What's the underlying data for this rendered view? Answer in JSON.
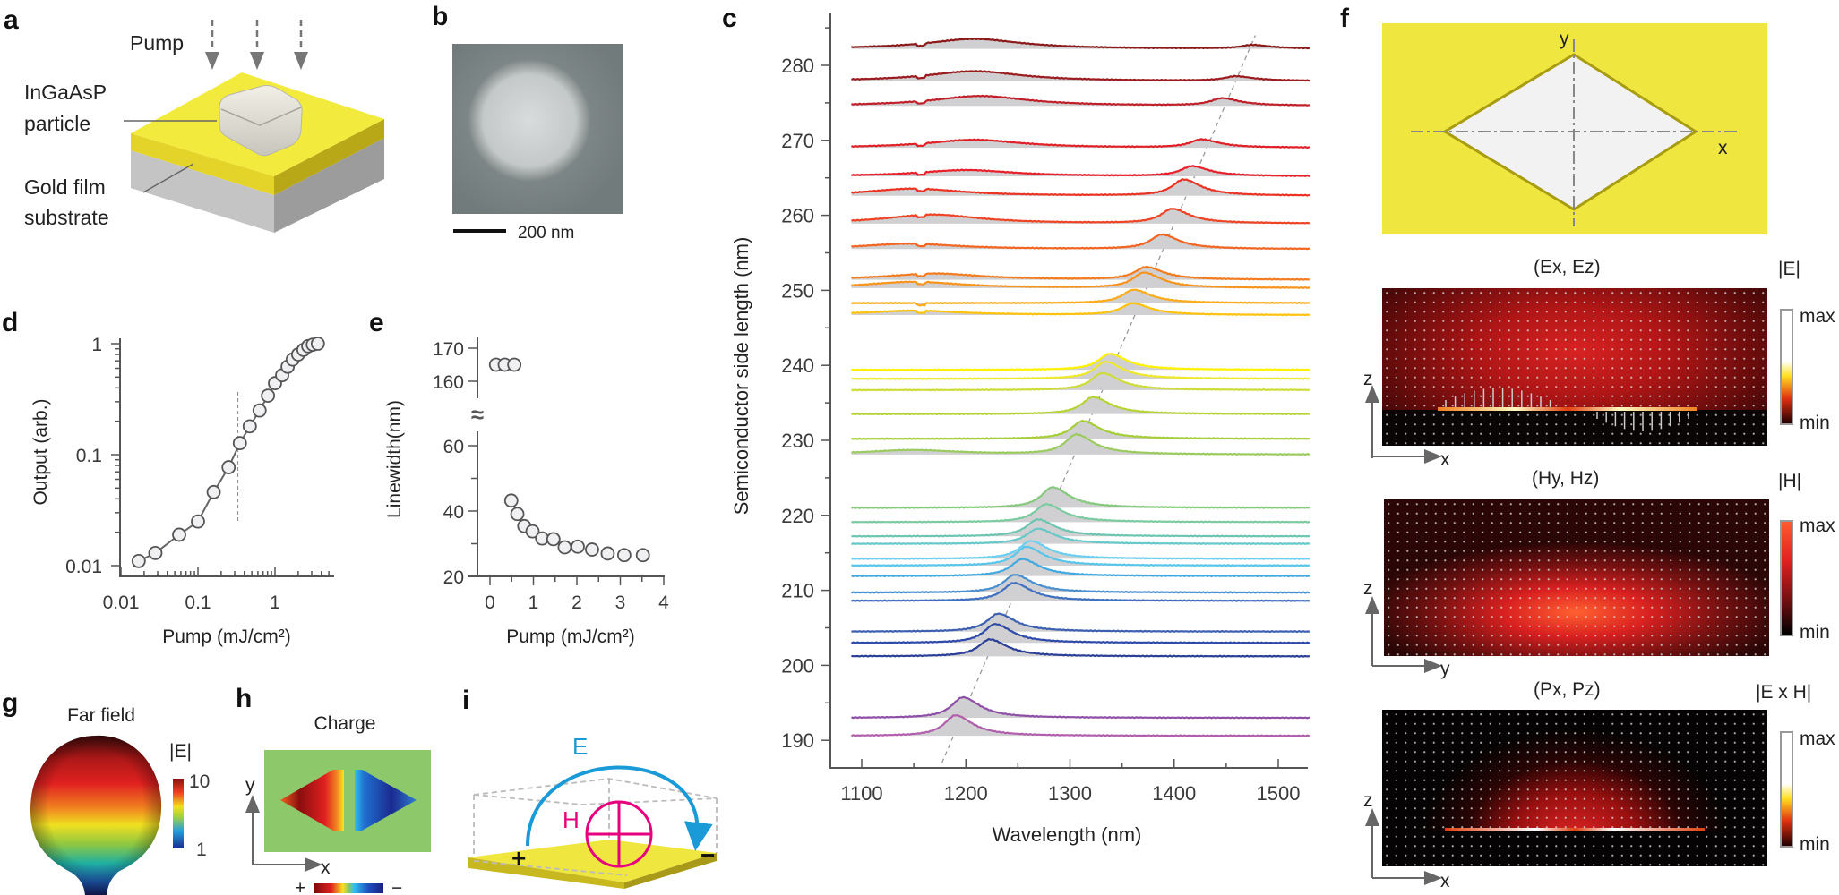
{
  "panel_labels": [
    "a",
    "b",
    "c",
    "d",
    "e",
    "f",
    "g",
    "h",
    "i"
  ],
  "panel_a": {
    "pump": "Pump",
    "particle_line1": "InGaAsP",
    "particle_line2": "particle",
    "substrate_line1": "Gold film",
    "substrate_line2": "substrate"
  },
  "panel_b": {
    "scale_bar": "200 nm"
  },
  "panel_f": {
    "top_axis_x": "x",
    "top_axis_y": "y",
    "maps": [
      {
        "title": "(Ex, Ez)",
        "colorbar_label": "|E|",
        "max": "max",
        "min": "min",
        "axis_v": "z",
        "axis_h": "x"
      },
      {
        "title": "(Hy, Hz)",
        "colorbar_label": "|H|",
        "max": "max",
        "min": "min",
        "axis_v": "z",
        "axis_h": "y"
      },
      {
        "title": "(Px, Pz)",
        "colorbar_label": "|E x H|",
        "max": "max",
        "min": "min",
        "axis_v": "z",
        "axis_h": "x"
      }
    ]
  },
  "panel_g": {
    "title": "Far field",
    "colorbar_label": "|E|",
    "max": "10",
    "min": "1"
  },
  "panel_h": {
    "title": "Charge",
    "axis_v": "y",
    "axis_h": "x",
    "plus": "+",
    "minus": "−"
  },
  "panel_i": {
    "e_label": "E",
    "h_label": "H",
    "plus": "+",
    "minus": "−"
  },
  "colors": {
    "gold": "#f0e640",
    "marker_fill": "#f0f0f2",
    "axis": "#555555",
    "peak_fill": "#d0d0d2",
    "e_arrow": "#1a9ad6",
    "h_loop": "#e6007e"
  },
  "chart_data": [
    {
      "panel": "d",
      "type": "scatter",
      "xlabel": "Pump (mJ/cm²)",
      "ylabel": "Output (arb.)",
      "xscale": "log",
      "yscale": "log",
      "xlim": [
        0.01,
        5
      ],
      "ylim": [
        0.008,
        1.2
      ],
      "xticks": [
        0.01,
        0.1,
        1
      ],
      "xtick_labels": [
        "0.01",
        "0.1",
        "1"
      ],
      "yticks": [
        0.01,
        0.1,
        1
      ],
      "ytick_labels": [
        "0.01",
        "0.1",
        "1"
      ],
      "threshold": 0.33,
      "x": [
        0.017,
        0.028,
        0.057,
        0.1,
        0.16,
        0.25,
        0.35,
        0.47,
        0.63,
        0.81,
        1.0,
        1.24,
        1.46,
        1.7,
        2.0,
        2.35,
        2.7,
        3.1,
        3.6
      ],
      "y": [
        0.011,
        0.013,
        0.019,
        0.025,
        0.046,
        0.077,
        0.127,
        0.18,
        0.25,
        0.34,
        0.44,
        0.52,
        0.62,
        0.72,
        0.8,
        0.88,
        0.95,
        0.98,
        1.0
      ]
    },
    {
      "panel": "e",
      "type": "scatter",
      "xlabel": "Pump (mJ/cm²)",
      "ylabel": "Linewidth(nm)",
      "xlim": [
        -0.2,
        4
      ],
      "ylim_lower": [
        20,
        65
      ],
      "ylim_upper": [
        157,
        172
      ],
      "axis_break": "≈",
      "xticks": [
        0,
        1,
        2,
        3,
        4
      ],
      "xtick_labels": [
        "0",
        "1",
        "2",
        "3",
        "4"
      ],
      "yticks": [
        20,
        40,
        60,
        160,
        170
      ],
      "ytick_labels": [
        "20",
        "40",
        "60",
        "160",
        "170"
      ],
      "x": [
        0.14,
        0.34,
        0.56,
        0.49,
        0.63,
        0.79,
        0.98,
        1.2,
        1.46,
        1.72,
        2.02,
        2.35,
        2.71,
        3.09,
        3.52
      ],
      "y": [
        165,
        165,
        165,
        43.2,
        39.1,
        35.4,
        33.8,
        31.6,
        31.4,
        28.9,
        29.1,
        28.2,
        27.0,
        26.5,
        26.5
      ]
    },
    {
      "panel": "c",
      "type": "line",
      "xlabel": "Wavelength (nm)",
      "ylabel": "Semiconductor side length (nm)",
      "xlim": [
        1075,
        1535
      ],
      "ylim": [
        185,
        286
      ],
      "xticks": [
        1100,
        1200,
        1300,
        1400,
        1500
      ],
      "xtick_labels": [
        "1100",
        "1200",
        "1300",
        "1400",
        "1500"
      ],
      "yticks": [
        190,
        200,
        210,
        220,
        230,
        240,
        250,
        260,
        270,
        280
      ],
      "ytick_labels": [
        "190",
        "200",
        "210",
        "220",
        "230",
        "240",
        "250",
        "260",
        "270",
        "280"
      ],
      "guide_line": {
        "from": [
          1177,
          187
        ],
        "to": [
          1478,
          284
        ]
      },
      "series": [
        {
          "side_length": 282.2,
          "color": "#8b1a1a",
          "peaks": [
            {
              "wavelength": 1208,
              "intensity": 0.44,
              "broad": true
            },
            {
              "wavelength": 1475,
              "intensity": 0.16
            }
          ]
        },
        {
          "side_length": 277.9,
          "color": "#9b1b1f",
          "peaks": [
            {
              "wavelength": 1208,
              "intensity": 0.44,
              "broad": true
            },
            {
              "wavelength": 1459,
              "intensity": 0.2
            }
          ]
        },
        {
          "side_length": 274.6,
          "color": "#c0202a",
          "peaks": [
            {
              "wavelength": 1214,
              "intensity": 0.44,
              "broad": true
            },
            {
              "wavelength": 1446,
              "intensity": 0.32
            }
          ]
        },
        {
          "side_length": 269.0,
          "color": "#e02026",
          "peaks": [
            {
              "wavelength": 1208,
              "intensity": 0.36,
              "broad": true
            },
            {
              "wavelength": 1426,
              "intensity": 0.36
            }
          ]
        },
        {
          "side_length": 265.2,
          "color": "#e8202a",
          "peaks": [
            {
              "wavelength": 1200,
              "intensity": 0.28,
              "broad": true
            },
            {
              "wavelength": 1417,
              "intensity": 0.44
            }
          ]
        },
        {
          "side_length": 262.6,
          "color": "#ea3323",
          "peaks": [
            {
              "wavelength": 1150,
              "intensity": 0.32,
              "broad": true
            },
            {
              "wavelength": 1409,
              "intensity": 0.72
            }
          ]
        },
        {
          "side_length": 258.9,
          "color": "#ee4424",
          "peaks": [
            {
              "wavelength": 1168,
              "intensity": 0.4,
              "broad": true
            },
            {
              "wavelength": 1398,
              "intensity": 0.64
            }
          ]
        },
        {
          "side_length": 255.5,
          "color": "#f26522",
          "peaks": [
            {
              "wavelength": 1146,
              "intensity": 0.24,
              "broad": true
            },
            {
              "wavelength": 1388,
              "intensity": 0.64
            }
          ]
        },
        {
          "side_length": 251.4,
          "color": "#f47c20",
          "peaks": [
            {
              "wavelength": 1170,
              "intensity": 0.28,
              "broad": true
            },
            {
              "wavelength": 1373,
              "intensity": 0.56
            }
          ]
        },
        {
          "side_length": 250.3,
          "color": "#f7941d",
          "peaks": [
            {
              "wavelength": 1150,
              "intensity": 0.28,
              "broad": true
            },
            {
              "wavelength": 1371,
              "intensity": 0.68
            }
          ]
        },
        {
          "side_length": 248.3,
          "color": "#fbaa19",
          "peaks": [
            {
              "wavelength": 1361,
              "intensity": 0.6
            }
          ]
        },
        {
          "side_length": 246.7,
          "color": "#ffc20e",
          "peaks": [
            {
              "wavelength": 1150,
              "intensity": 0.2,
              "broad": true
            },
            {
              "wavelength": 1360,
              "intensity": 0.52
            }
          ]
        },
        {
          "side_length": 239.4,
          "color": "#fff200",
          "peaks": [
            {
              "wavelength": 1338,
              "intensity": 0.72
            }
          ]
        },
        {
          "side_length": 238.2,
          "color": "#eee82a",
          "peaks": [
            {
              "wavelength": 1334,
              "intensity": 0.76
            }
          ]
        },
        {
          "side_length": 236.7,
          "color": "#cddc39",
          "peaks": [
            {
              "wavelength": 1331,
              "intensity": 0.76
            }
          ]
        },
        {
          "side_length": 233.5,
          "color": "#b5d334",
          "peaks": [
            {
              "wavelength": 1322,
              "intensity": 0.76
            }
          ]
        },
        {
          "side_length": 230.2,
          "color": "#a6ce39",
          "peaks": [
            {
              "wavelength": 1312,
              "intensity": 0.8
            }
          ]
        },
        {
          "side_length": 228.1,
          "color": "#9bcb5f",
          "peaks": [
            {
              "wavelength": 1148,
              "intensity": 0.2,
              "broad": true
            },
            {
              "wavelength": 1306,
              "intensity": 0.88
            }
          ]
        },
        {
          "side_length": 221.0,
          "color": "#86c97e",
          "peaks": [
            {
              "wavelength": 1283,
              "intensity": 0.92
            }
          ]
        },
        {
          "side_length": 219.1,
          "color": "#7ccba0",
          "peaks": [
            {
              "wavelength": 1277,
              "intensity": 0.8
            }
          ]
        },
        {
          "side_length": 217.2,
          "color": "#6cc5b0",
          "peaks": [
            {
              "wavelength": 1269,
              "intensity": 0.76
            }
          ]
        },
        {
          "side_length": 216.2,
          "color": "#66c8c8",
          "peaks": [
            {
              "wavelength": 1269,
              "intensity": 0.68
            }
          ]
        },
        {
          "side_length": 214.2,
          "color": "#6dcff0",
          "peaks": [
            {
              "wavelength": 1262,
              "intensity": 0.8
            }
          ]
        },
        {
          "side_length": 213.3,
          "color": "#58c5ea",
          "peaks": [
            {
              "wavelength": 1258,
              "intensity": 0.84
            }
          ]
        },
        {
          "side_length": 211.9,
          "color": "#3fa9e0",
          "peaks": [
            {
              "wavelength": 1254,
              "intensity": 0.76
            }
          ]
        },
        {
          "side_length": 209.7,
          "color": "#4a90d0",
          "peaks": [
            {
              "wavelength": 1247,
              "intensity": 0.8
            }
          ]
        },
        {
          "side_length": 208.6,
          "color": "#3f6fbf",
          "peaks": [
            {
              "wavelength": 1246,
              "intensity": 0.8
            }
          ]
        },
        {
          "side_length": 204.5,
          "color": "#3d5fb0",
          "peaks": [
            {
              "wavelength": 1231,
              "intensity": 0.8
            }
          ]
        },
        {
          "side_length": 203.0,
          "color": "#2e4aa8",
          "peaks": [
            {
              "wavelength": 1228,
              "intensity": 0.84
            }
          ]
        },
        {
          "side_length": 201.2,
          "color": "#2b3f96",
          "peaks": [
            {
              "wavelength": 1223,
              "intensity": 0.76
            }
          ]
        },
        {
          "side_length": 193.0,
          "color": "#8e4fa6",
          "peaks": [
            {
              "wavelength": 1197,
              "intensity": 0.92
            }
          ]
        },
        {
          "side_length": 190.6,
          "color": "#b15fac",
          "peaks": [
            {
              "wavelength": 1190,
              "intensity": 0.92
            }
          ]
        }
      ]
    }
  ]
}
